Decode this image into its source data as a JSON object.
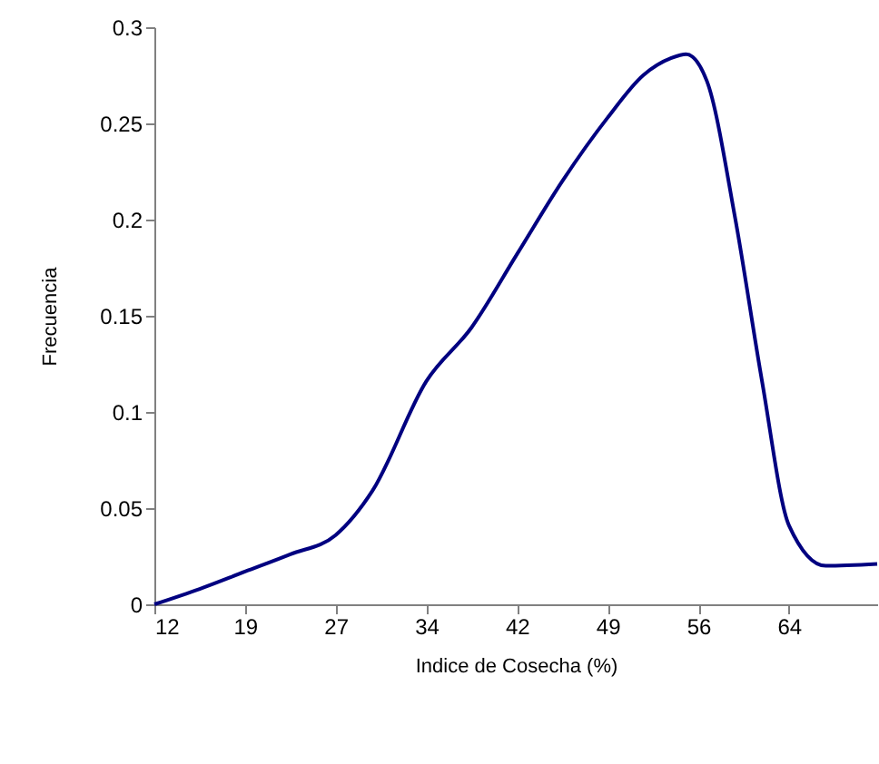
{
  "chart_data": {
    "type": "line",
    "xlabel": "Indice de Cosecha (%)",
    "ylabel": "Frecuencia",
    "x": [
      12,
      15.7,
      19.4,
      23.1,
      26.8,
      29.8,
      34.2,
      37.9,
      41.6,
      45.3,
      49,
      51.9,
      54.2,
      55.4,
      57.1,
      59.4,
      61.6,
      63.8,
      66.8,
      71
    ],
    "series": [
      {
        "color": "#000080",
        "values": [
          0,
          0.008,
          0.017,
          0.026,
          0.036,
          0.059,
          0.116,
          0.144,
          0.182,
          0.22,
          0.253,
          0.275,
          0.284,
          0.286,
          0.272,
          0.201,
          0.116,
          0.041,
          0.02,
          0.021
        ]
      }
    ],
    "xlim": [
      12,
      71
    ],
    "xticks": [
      12,
      {
        "value": 19.4,
        "label": "19"
      },
      {
        "value": 26.8,
        "label": "27"
      },
      {
        "value": 34.2,
        "label": "34"
      },
      {
        "value": 41.6,
        "label": "42"
      },
      49,
      {
        "value": 56.4,
        "label": "56"
      },
      {
        "value": 63.8,
        "label": "64"
      }
    ],
    "ylim": [
      0,
      0.3
    ],
    "yticks": [
      0,
      0.05,
      0.1,
      0.15,
      0.2,
      0.25,
      0.3
    ],
    "grid": false,
    "marker": "none",
    "line_style": "solid"
  }
}
